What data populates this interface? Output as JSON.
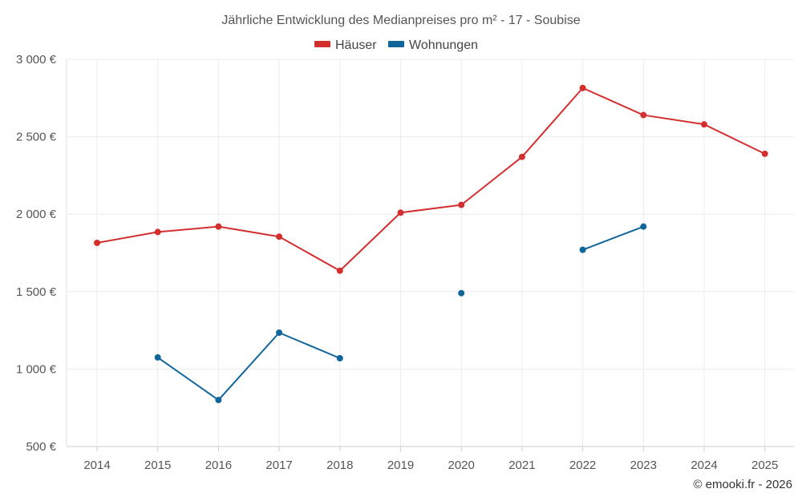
{
  "chart_data": {
    "type": "line",
    "title": "Jährliche Entwicklung des Medianpreises pro m² - 17 - Soubise",
    "categories": [
      "2014",
      "2015",
      "2016",
      "2017",
      "2018",
      "2019",
      "2020",
      "2021",
      "2022",
      "2023",
      "2024",
      "2025"
    ],
    "ylim": [
      500,
      3000
    ],
    "yticks": [
      500,
      1000,
      1500,
      2000,
      2500,
      3000
    ],
    "ytick_labels": [
      "500 €",
      "1 000 €",
      "1 500 €",
      "2 000 €",
      "2 500 €",
      "3 000 €"
    ],
    "xlabel": "",
    "ylabel": "",
    "grid": true,
    "legend_position": "top-center",
    "series": [
      {
        "name": "Häuser",
        "color": "#d32f2f",
        "values": [
          1815,
          1885,
          1920,
          1855,
          1635,
          2010,
          2060,
          2370,
          2815,
          2640,
          2580,
          2390
        ]
      },
      {
        "name": "Wohnungen",
        "color": "#10659a",
        "values": [
          null,
          1075,
          800,
          1235,
          1070,
          null,
          1490,
          null,
          1770,
          1920,
          null,
          null
        ]
      }
    ],
    "credit": "© emooki.fr - 2026"
  }
}
